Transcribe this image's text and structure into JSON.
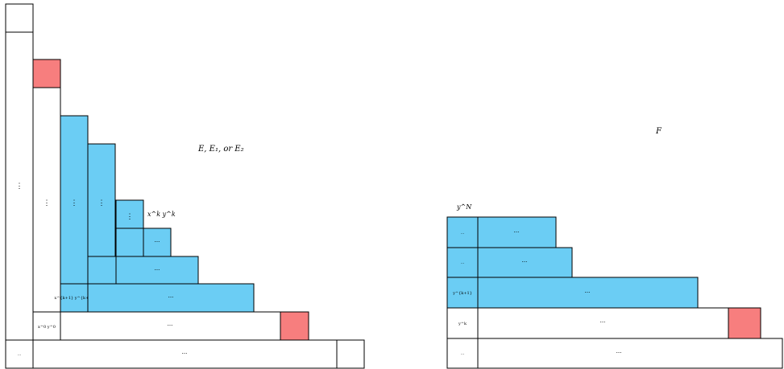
{
  "left_diagram": {
    "label": "E, E₁, or E₂",
    "dots_h": "···",
    "dots_v": "⋮",
    "dots_low": "...",
    "cell_xy": "x^k y^k",
    "cell_x1y1": "x^{k+1} y^{k+1}",
    "cell_x0y0": "x^0 y^0",
    "colors": {
      "blue": "#6bcdf4",
      "red": "#f77e7e",
      "white": "#ffffff"
    }
  },
  "right_diagram": {
    "label": "F",
    "dots_h": "···",
    "dots_low": "...",
    "cell_yN": "y^N",
    "cell_yk1": "y^{k+1}",
    "cell_yk": "y^k"
  }
}
